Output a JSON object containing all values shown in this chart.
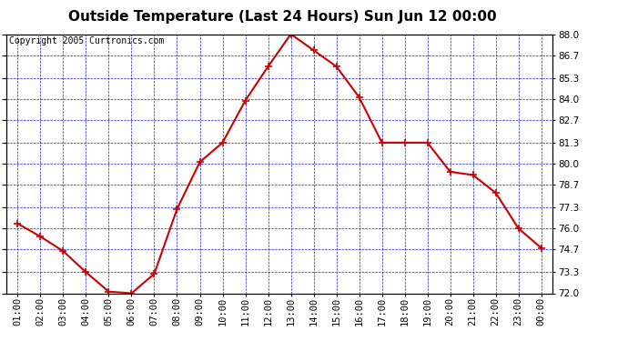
{
  "title": "Outside Temperature (Last 24 Hours) Sun Jun 12 00:00",
  "copyright": "Copyright 2005 Curtronics.com",
  "x_labels": [
    "01:00",
    "02:00",
    "03:00",
    "04:00",
    "05:00",
    "06:00",
    "07:00",
    "08:00",
    "09:00",
    "10:00",
    "11:00",
    "12:00",
    "13:00",
    "14:00",
    "15:00",
    "16:00",
    "17:00",
    "18:00",
    "19:00",
    "20:00",
    "21:00",
    "22:00",
    "23:00",
    "00:00"
  ],
  "x_values": [
    1,
    2,
    3,
    4,
    5,
    6,
    7,
    8,
    9,
    10,
    11,
    12,
    13,
    14,
    15,
    16,
    17,
    18,
    19,
    20,
    21,
    22,
    23,
    24
  ],
  "y_values": [
    76.3,
    75.5,
    74.6,
    73.3,
    72.1,
    72.0,
    73.2,
    77.2,
    80.1,
    81.3,
    83.9,
    86.0,
    88.0,
    87.0,
    86.0,
    84.1,
    81.3,
    81.3,
    81.3,
    79.5,
    79.3,
    78.2,
    76.0,
    74.8
  ],
  "ylim": [
    72.0,
    88.0
  ],
  "yticks": [
    72.0,
    73.3,
    74.7,
    76.0,
    77.3,
    78.7,
    80.0,
    81.3,
    82.7,
    84.0,
    85.3,
    86.7,
    88.0
  ],
  "line_color": "#cc0000",
  "marker_color": "#cc0000",
  "bg_color": "#ffffff",
  "plot_bg_color": "#ffffff",
  "grid_color": "#0000cc",
  "title_fontsize": 11,
  "tick_fontsize": 7.5,
  "copyright_fontsize": 7
}
